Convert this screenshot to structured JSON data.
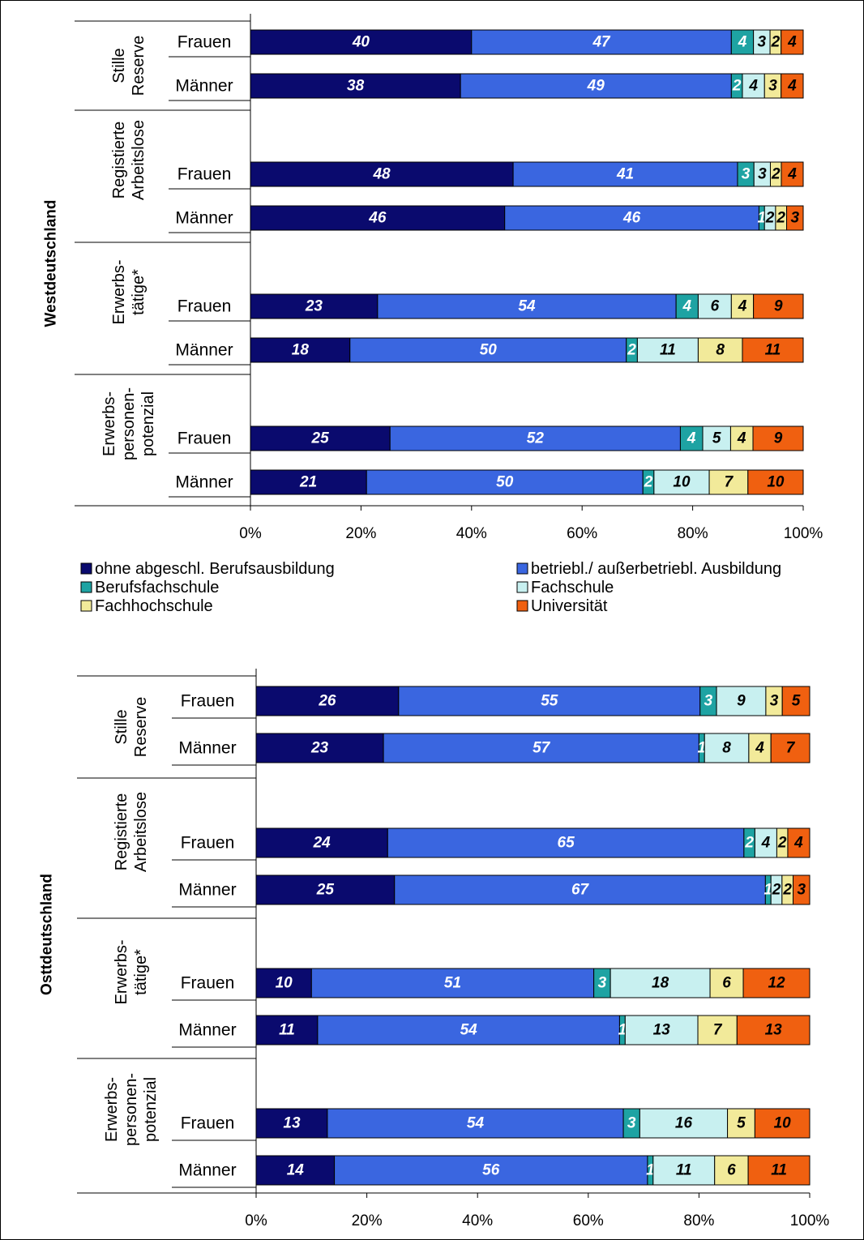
{
  "chart_data": [
    {
      "type": "bar",
      "orientation": "horizontal",
      "stacked": true,
      "region": "Westdeutschland",
      "groups": [
        {
          "name": "Stille Reserve",
          "label_lines": [
            "Stille",
            "Reserve"
          ],
          "rows": [
            {
              "label": "Frauen",
              "values": [
                40,
                47,
                4,
                3,
                2,
                4
              ]
            },
            {
              "label": "Männer",
              "values": [
                38,
                49,
                2,
                4,
                3,
                4
              ]
            }
          ]
        },
        {
          "name": "Registierte Arbeitslose",
          "label_lines": [
            "Registierte",
            "Arbeitslose"
          ],
          "rows": [
            {
              "label": "Frauen",
              "values": [
                48,
                41,
                3,
                3,
                2,
                4
              ]
            },
            {
              "label": "Männer",
              "values": [
                46,
                46,
                1,
                2,
                2,
                3
              ]
            }
          ]
        },
        {
          "name": "Erwerbs-tätige*",
          "label_lines": [
            "Erwerbs-",
            "tätige*"
          ],
          "rows": [
            {
              "label": "Frauen",
              "values": [
                23,
                54,
                4,
                6,
                4,
                9
              ]
            },
            {
              "label": "Männer",
              "values": [
                18,
                50,
                2,
                11,
                8,
                11
              ]
            }
          ]
        },
        {
          "name": "Erwerbs-personen-potenzial",
          "label_lines": [
            "Erwerbs-",
            "personen-",
            "potenzial"
          ],
          "rows": [
            {
              "label": "Frauen",
              "values": [
                25,
                52,
                4,
                5,
                4,
                9
              ]
            },
            {
              "label": "Männer",
              "values": [
                21,
                50,
                2,
                10,
                7,
                10
              ]
            }
          ]
        }
      ],
      "x_ticks": [
        "0%",
        "20%",
        "40%",
        "60%",
        "80%",
        "100%"
      ],
      "xlim": [
        0,
        100
      ],
      "legend_position": "bottom"
    },
    {
      "type": "bar",
      "orientation": "horizontal",
      "stacked": true,
      "region": "Osttdeutschland",
      "groups": [
        {
          "name": "Stille Reserve",
          "label_lines": [
            "Stille",
            "Reserve"
          ],
          "rows": [
            {
              "label": "Frauen",
              "values": [
                26,
                55,
                3,
                9,
                3,
                5
              ]
            },
            {
              "label": "Männer",
              "values": [
                23,
                57,
                1,
                8,
                4,
                7
              ]
            }
          ]
        },
        {
          "name": "Registierte Arbeitslose",
          "label_lines": [
            "Registierte",
            "Arbeitslose"
          ],
          "rows": [
            {
              "label": "Frauen",
              "values": [
                24,
                65,
                2,
                4,
                2,
                4
              ]
            },
            {
              "label": "Männer",
              "values": [
                25,
                67,
                1,
                2,
                2,
                3
              ]
            }
          ]
        },
        {
          "name": "Erwerbs-tätige*",
          "label_lines": [
            "Erwerbs-",
            "tätige*"
          ],
          "rows": [
            {
              "label": "Frauen",
              "values": [
                10,
                51,
                3,
                18,
                6,
                12
              ]
            },
            {
              "label": "Männer",
              "values": [
                11,
                54,
                1,
                13,
                7,
                13
              ]
            }
          ]
        },
        {
          "name": "Erwerbs-personen-potenzial",
          "label_lines": [
            "Erwerbs-",
            "personen-",
            "potenzial"
          ],
          "rows": [
            {
              "label": "Frauen",
              "values": [
                13,
                54,
                3,
                16,
                5,
                10
              ]
            },
            {
              "label": "Männer",
              "values": [
                14,
                56,
                1,
                11,
                6,
                11
              ]
            }
          ]
        }
      ],
      "x_ticks": [
        "0%",
        "20%",
        "40%",
        "60%",
        "80%",
        "100%"
      ],
      "xlim": [
        0,
        100
      ]
    }
  ],
  "series": [
    {
      "name": "ohne abgeschl. Berufsausbildung",
      "color": "#0a0a6e",
      "label_color": "#ffffff"
    },
    {
      "name": "betriebl./ außerbetriebl. Ausbildung",
      "color": "#3a66e0",
      "label_color": "#ffffff"
    },
    {
      "name": "Berufsfachschule",
      "color": "#1ea3a3",
      "label_color": "#ffffff"
    },
    {
      "name": "Fachschule",
      "color": "#c8f0f0",
      "label_color": "#000000"
    },
    {
      "name": "Fachhochschule",
      "color": "#f2ea9a",
      "label_color": "#000000"
    },
    {
      "name": "Universität",
      "color": "#f06010",
      "label_color": "#000000"
    }
  ]
}
